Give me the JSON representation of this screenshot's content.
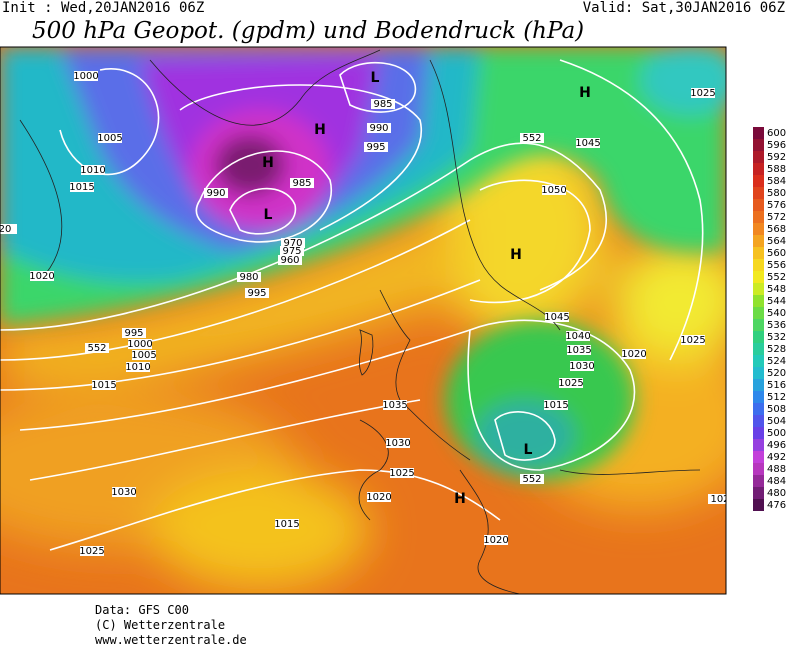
{
  "header": {
    "init": "Init : Wed,20JAN2016 06Z",
    "valid": "Valid: Sat,30JAN2016 06Z",
    "title": "500 hPa Geopot. (gpdm) und Bodendruck (hPa)"
  },
  "map": {
    "isobar_labels": [
      "1000",
      "1005",
      "1010",
      "1015",
      "1020",
      "20",
      "995",
      "1000",
      "1005",
      "1010",
      "1015",
      "1030",
      "1025",
      "985",
      "990",
      "995",
      "985",
      "990",
      "980",
      "995",
      "970",
      "975",
      "960",
      "1045",
      "1050",
      "1025",
      "1045",
      "1040",
      "1035",
      "1030",
      "1025",
      "1015",
      "1020",
      "1025",
      "1035",
      "1030",
      "1025",
      "1020",
      "1015",
      "1020",
      "102",
      "552",
      "552",
      "552"
    ],
    "pressure_centers": [
      "L",
      "H",
      "H",
      "L",
      "H",
      "H",
      "L",
      "H"
    ]
  },
  "colorbar": {
    "ticks": [
      600,
      596,
      592,
      588,
      584,
      580,
      576,
      572,
      568,
      564,
      560,
      556,
      552,
      548,
      544,
      540,
      536,
      532,
      528,
      524,
      520,
      516,
      512,
      508,
      504,
      500,
      496,
      492,
      488,
      484,
      480,
      476
    ]
  },
  "footer": {
    "data": "Data: GFS C00",
    "copyright": "(C) Wetterzentrale",
    "url": "www.wetterzentrale.de"
  }
}
